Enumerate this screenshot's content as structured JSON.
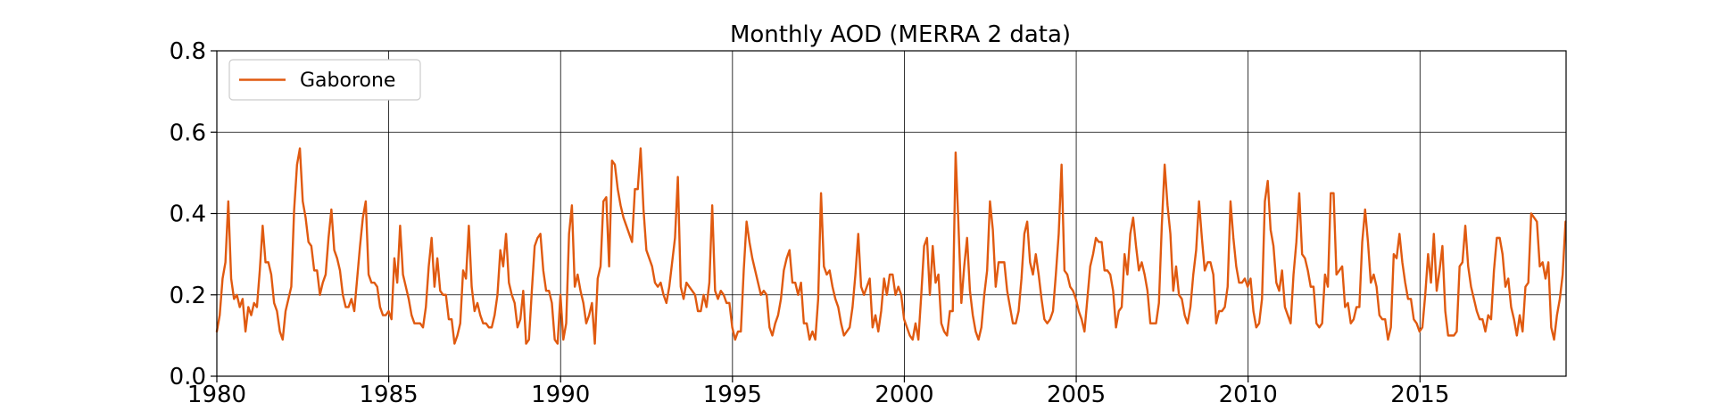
{
  "chart_data": {
    "type": "line",
    "title": "Monthly AOD (MERRA 2 data)",
    "xlabel": "",
    "ylabel": "",
    "xlim": [
      1980.0,
      2019.25
    ],
    "ylim": [
      0.0,
      0.8
    ],
    "x_ticks": [
      1980,
      1985,
      1990,
      1995,
      2000,
      2005,
      2010,
      2015
    ],
    "x_tick_labels": [
      "1980",
      "1985",
      "1990",
      "1995",
      "2000",
      "2005",
      "2010",
      "2015"
    ],
    "y_ticks": [
      0.0,
      0.2,
      0.4,
      0.6,
      0.8
    ],
    "y_tick_labels": [
      "0.0",
      "0.2",
      "0.4",
      "0.6",
      "0.8"
    ],
    "grid": true,
    "legend_position": "top-left",
    "series": [
      {
        "name": "Gaborone",
        "color": "#e05a10",
        "x_start": 1980.0,
        "x_step_years": 0.0833,
        "values": [
          0.11,
          0.15,
          0.24,
          0.28,
          0.43,
          0.24,
          0.19,
          0.2,
          0.17,
          0.19,
          0.11,
          0.17,
          0.15,
          0.18,
          0.17,
          0.26,
          0.37,
          0.28,
          0.28,
          0.25,
          0.18,
          0.16,
          0.11,
          0.09,
          0.16,
          0.19,
          0.22,
          0.41,
          0.52,
          0.56,
          0.43,
          0.39,
          0.33,
          0.32,
          0.26,
          0.26,
          0.2,
          0.23,
          0.25,
          0.34,
          0.41,
          0.31,
          0.29,
          0.26,
          0.2,
          0.17,
          0.17,
          0.19,
          0.16,
          0.24,
          0.32,
          0.39,
          0.43,
          0.25,
          0.23,
          0.23,
          0.22,
          0.17,
          0.15,
          0.15,
          0.16,
          0.14,
          0.29,
          0.23,
          0.37,
          0.25,
          0.22,
          0.19,
          0.15,
          0.13,
          0.13,
          0.13,
          0.12,
          0.17,
          0.27,
          0.34,
          0.22,
          0.29,
          0.21,
          0.2,
          0.2,
          0.14,
          0.14,
          0.08,
          0.1,
          0.13,
          0.26,
          0.24,
          0.37,
          0.22,
          0.16,
          0.18,
          0.15,
          0.13,
          0.13,
          0.12,
          0.12,
          0.15,
          0.2,
          0.31,
          0.27,
          0.35,
          0.23,
          0.2,
          0.18,
          0.12,
          0.14,
          0.21,
          0.08,
          0.09,
          0.21,
          0.32,
          0.34,
          0.35,
          0.26,
          0.21,
          0.21,
          0.18,
          0.09,
          0.08,
          0.2,
          0.09,
          0.13,
          0.35,
          0.42,
          0.22,
          0.25,
          0.21,
          0.18,
          0.13,
          0.15,
          0.18,
          0.08,
          0.24,
          0.27,
          0.43,
          0.44,
          0.27,
          0.53,
          0.52,
          0.46,
          0.42,
          0.39,
          0.37,
          0.35,
          0.33,
          0.46,
          0.46,
          0.56,
          0.41,
          0.31,
          0.29,
          0.27,
          0.23,
          0.22,
          0.23,
          0.2,
          0.18,
          0.22,
          0.28,
          0.34,
          0.49,
          0.22,
          0.19,
          0.23,
          0.22,
          0.21,
          0.2,
          0.16,
          0.16,
          0.2,
          0.17,
          0.23,
          0.42,
          0.21,
          0.19,
          0.21,
          0.2,
          0.18,
          0.18,
          0.12,
          0.09,
          0.11,
          0.11,
          0.26,
          0.38,
          0.33,
          0.29,
          0.26,
          0.23,
          0.2,
          0.21,
          0.2,
          0.12,
          0.1,
          0.13,
          0.15,
          0.19,
          0.26,
          0.29,
          0.31,
          0.23,
          0.23,
          0.2,
          0.23,
          0.13,
          0.13,
          0.09,
          0.11,
          0.09,
          0.19,
          0.45,
          0.27,
          0.25,
          0.26,
          0.22,
          0.19,
          0.17,
          0.13,
          0.1,
          0.11,
          0.12,
          0.17,
          0.25,
          0.35,
          0.22,
          0.2,
          0.22,
          0.24,
          0.12,
          0.15,
          0.11,
          0.16,
          0.24,
          0.2,
          0.25,
          0.25,
          0.2,
          0.22,
          0.2,
          0.14,
          0.12,
          0.1,
          0.09,
          0.13,
          0.09,
          0.2,
          0.32,
          0.34,
          0.2,
          0.32,
          0.23,
          0.25,
          0.13,
          0.11,
          0.1,
          0.16,
          0.16,
          0.55,
          0.37,
          0.18,
          0.27,
          0.34,
          0.21,
          0.15,
          0.11,
          0.09,
          0.12,
          0.2,
          0.26,
          0.43,
          0.36,
          0.22,
          0.28,
          0.28,
          0.28,
          0.21,
          0.17,
          0.13,
          0.13,
          0.16,
          0.24,
          0.35,
          0.38,
          0.28,
          0.25,
          0.3,
          0.25,
          0.19,
          0.14,
          0.13,
          0.14,
          0.16,
          0.25,
          0.35,
          0.52,
          0.26,
          0.25,
          0.22,
          0.21,
          0.19,
          0.16,
          0.14,
          0.11,
          0.19,
          0.27,
          0.3,
          0.34,
          0.33,
          0.33,
          0.26,
          0.26,
          0.25,
          0.21,
          0.12,
          0.16,
          0.17,
          0.3,
          0.25,
          0.35,
          0.39,
          0.32,
          0.26,
          0.28,
          0.25,
          0.21,
          0.13,
          0.13,
          0.13,
          0.18,
          0.37,
          0.52,
          0.42,
          0.35,
          0.21,
          0.27,
          0.2,
          0.19,
          0.15,
          0.13,
          0.17,
          0.25,
          0.31,
          0.43,
          0.34,
          0.26,
          0.28,
          0.28,
          0.25,
          0.13,
          0.16,
          0.16,
          0.17,
          0.22,
          0.43,
          0.34,
          0.27,
          0.23,
          0.23,
          0.24,
          0.22,
          0.24,
          0.16,
          0.12,
          0.13,
          0.19,
          0.43,
          0.48,
          0.36,
          0.32,
          0.23,
          0.21,
          0.26,
          0.17,
          0.15,
          0.13,
          0.25,
          0.33,
          0.45,
          0.3,
          0.29,
          0.26,
          0.22,
          0.22,
          0.13,
          0.12,
          0.13,
          0.25,
          0.22,
          0.45,
          0.45,
          0.25,
          0.26,
          0.27,
          0.17,
          0.18,
          0.13,
          0.14,
          0.17,
          0.17,
          0.33,
          0.41,
          0.33,
          0.23,
          0.25,
          0.22,
          0.15,
          0.14,
          0.14,
          0.09,
          0.12,
          0.3,
          0.29,
          0.35,
          0.28,
          0.23,
          0.19,
          0.19,
          0.14,
          0.13,
          0.11,
          0.12,
          0.2,
          0.3,
          0.23,
          0.35,
          0.21,
          0.26,
          0.32,
          0.16,
          0.1,
          0.1,
          0.1,
          0.11,
          0.27,
          0.28,
          0.37,
          0.27,
          0.22,
          0.19,
          0.16,
          0.14,
          0.14,
          0.11,
          0.15,
          0.14,
          0.26,
          0.34,
          0.34,
          0.3,
          0.22,
          0.24,
          0.17,
          0.14,
          0.1,
          0.15,
          0.11,
          0.22,
          0.23,
          0.4,
          0.39,
          0.38,
          0.27,
          0.28,
          0.24,
          0.28,
          0.12,
          0.09,
          0.15,
          0.19,
          0.25,
          0.38
        ]
      }
    ]
  }
}
